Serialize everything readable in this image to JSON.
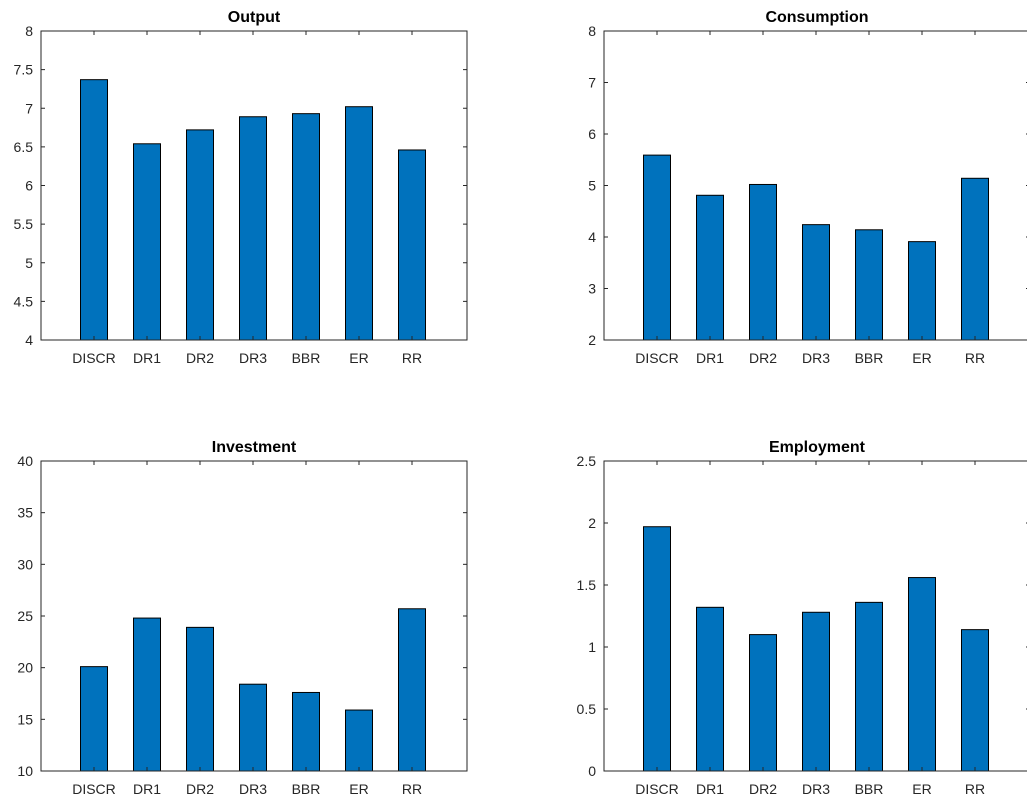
{
  "figure": {
    "bar_color": "#0072BD",
    "axis_color": "#262626"
  },
  "chart_data": [
    {
      "type": "bar",
      "title": "Output",
      "categories": [
        "DISCR",
        "DR1",
        "DR2",
        "DR3",
        "BBR",
        "ER",
        "RR"
      ],
      "values": [
        7.37,
        6.54,
        6.72,
        6.89,
        6.93,
        7.02,
        6.46
      ],
      "ylim": [
        4,
        8
      ],
      "yticks": [
        "4",
        "4.5",
        "5",
        "5.5",
        "6",
        "6.5",
        "7",
        "7.5",
        "8"
      ],
      "ytick_values": [
        4,
        4.5,
        5,
        5.5,
        6,
        6.5,
        7,
        7.5,
        8
      ],
      "xlabel": "",
      "ylabel": "",
      "grid": false
    },
    {
      "type": "bar",
      "title": "Consumption",
      "categories": [
        "DISCR",
        "DR1",
        "DR2",
        "DR3",
        "BBR",
        "ER",
        "RR"
      ],
      "values": [
        5.59,
        4.81,
        5.02,
        4.24,
        4.14,
        3.91,
        5.14
      ],
      "ylim": [
        2,
        8
      ],
      "yticks": [
        "2",
        "3",
        "4",
        "5",
        "6",
        "7",
        "8"
      ],
      "ytick_values": [
        2,
        3,
        4,
        5,
        6,
        7,
        8
      ],
      "xlabel": "",
      "ylabel": "",
      "grid": false
    },
    {
      "type": "bar",
      "title": "Investment",
      "categories": [
        "DISCR",
        "DR1",
        "DR2",
        "DR3",
        "BBR",
        "ER",
        "RR"
      ],
      "values": [
        20.1,
        24.8,
        23.9,
        18.4,
        17.6,
        15.9,
        25.7
      ],
      "ylim": [
        10,
        40
      ],
      "yticks": [
        "10",
        "15",
        "20",
        "25",
        "30",
        "35",
        "40"
      ],
      "ytick_values": [
        10,
        15,
        20,
        25,
        30,
        35,
        40
      ],
      "xlabel": "",
      "ylabel": "",
      "grid": false
    },
    {
      "type": "bar",
      "title": "Employment",
      "categories": [
        "DISCR",
        "DR1",
        "DR2",
        "DR3",
        "BBR",
        "ER",
        "RR"
      ],
      "values": [
        1.97,
        1.32,
        1.1,
        1.28,
        1.36,
        1.56,
        1.14
      ],
      "ylim": [
        0,
        2.5
      ],
      "yticks": [
        "0",
        "0.5",
        "1",
        "1.5",
        "2",
        "2.5"
      ],
      "ytick_values": [
        0,
        0.5,
        1,
        1.5,
        2,
        2.5
      ],
      "xlabel": "",
      "ylabel": "",
      "grid": false
    }
  ]
}
